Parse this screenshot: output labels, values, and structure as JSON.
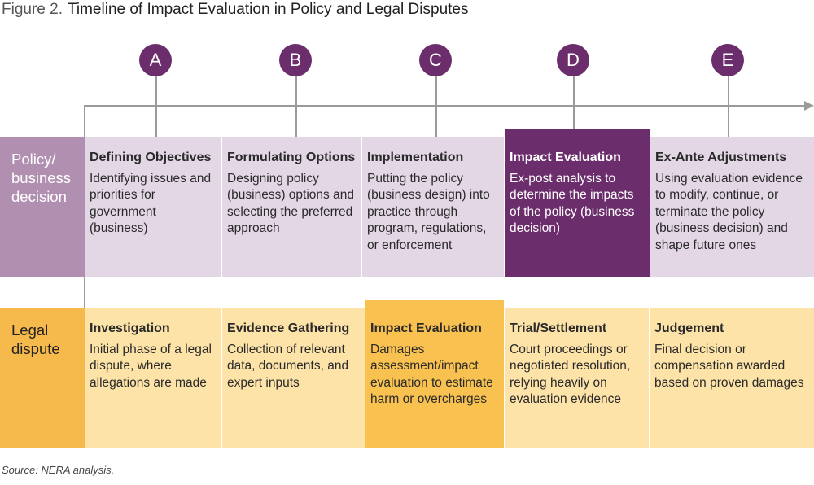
{
  "figure_label": "Figure 2.",
  "title": "Timeline of Impact Evaluation in Policy and Legal Disputes",
  "colors": {
    "purple_dark": "#6b2d6b",
    "purple_label": "#b08fb1",
    "purple_light": "#e3d7e6",
    "orange_label": "#f6b94b",
    "orange_highlight": "#f9c150",
    "orange_light": "#fde3a8",
    "line": "#9a9a9a"
  },
  "markers": [
    "A",
    "B",
    "C",
    "D",
    "E"
  ],
  "policy": {
    "label": "Policy/ business decision",
    "cells": [
      {
        "heading": "Defining Objectives",
        "text": "Identifying issues and priorities for government (business)"
      },
      {
        "heading": "Formulating Options",
        "text": "Designing policy (business) options and selecting the preferred approach"
      },
      {
        "heading": "Implementation",
        "text": "Putting the policy (business design) into practice through program, regulations, or enforcement"
      },
      {
        "heading": "Impact Evaluation",
        "text": "Ex-post analysis to determine the impacts of the policy (business decision)",
        "highlighted": true
      },
      {
        "heading": "Ex-Ante Adjustments",
        "text": "Using evaluation evidence to modify, continue, or terminate the policy (business decision) and shape future ones"
      }
    ]
  },
  "legal": {
    "label": "Legal dispute",
    "cells": [
      {
        "heading": "Investigation",
        "text": "Initial phase of a legal dispute, where allegations are made"
      },
      {
        "heading": "Evidence Gathering",
        "text": "Collection of relevant data, documents, and expert inputs"
      },
      {
        "heading": "Impact Evaluation",
        "text": "Damages assessment/impact evaluation to estimate harm or overcharges",
        "highlighted": true
      },
      {
        "heading": "Trial/Settlement",
        "text": "Court proceedings or negotiated resolution, relying heavily on evaluation evidence"
      },
      {
        "heading": "Judgement",
        "text": "Final decision or compensation awarded based on proven damages"
      }
    ]
  },
  "source": "Source: NERA analysis."
}
